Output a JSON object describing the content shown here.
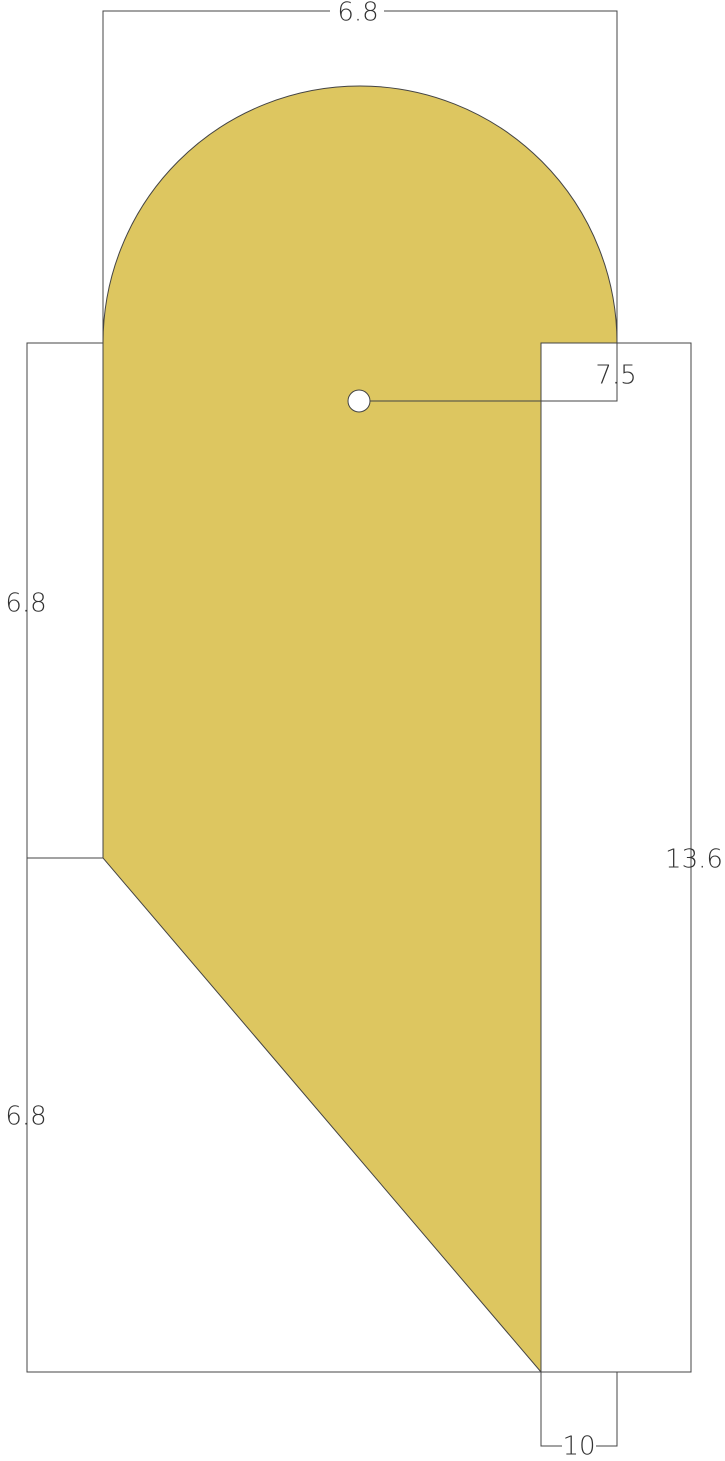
{
  "dimensions": [
    "6.8",
    "7.5",
    "6.8",
    "6.8",
    "13.6",
    "10"
  ]
}
